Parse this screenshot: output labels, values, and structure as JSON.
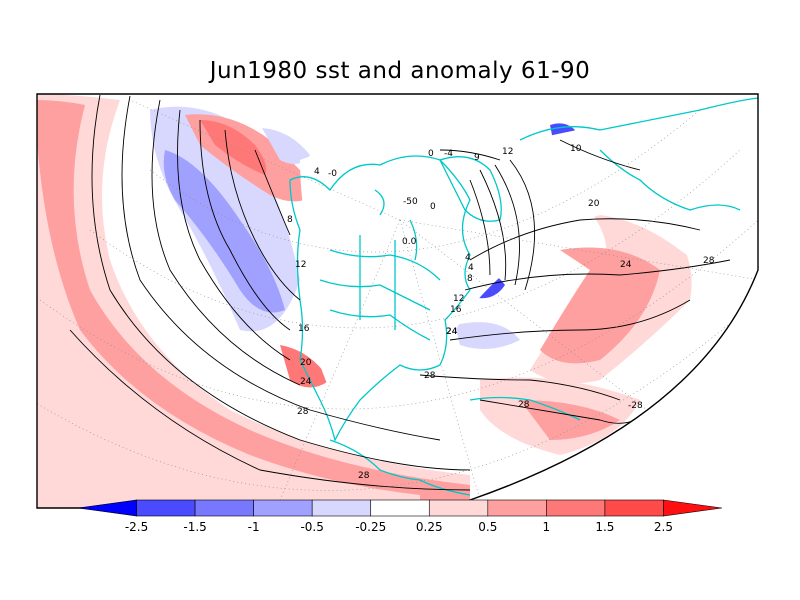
{
  "title": "Jun1980 sst and anomaly 61-90",
  "colorbar": {
    "labels": [
      "-2.5",
      "-1.5",
      "-1",
      "-0.5",
      "-0.25",
      "0.25",
      "0.5",
      "1",
      "1.5",
      "2.5"
    ],
    "colors": [
      "#0000ff",
      "#4a4aff",
      "#7878ff",
      "#a0a0ff",
      "#d8d8ff",
      "#ffffff",
      "#ffd8d8",
      "#ffa0a0",
      "#ff7878",
      "#ff4a4a",
      "#ff1010"
    ]
  },
  "contour_labels": {
    "pacific": [
      "8",
      "12",
      "16",
      "20",
      "24",
      "28",
      "28"
    ],
    "atlantic": [
      "24",
      "28",
      "28",
      "-28",
      "20",
      "24",
      "28",
      "12",
      "16",
      "8",
      "4",
      "24"
    ],
    "arctic": [
      "0",
      "-4",
      "9",
      "12",
      "10",
      "-50",
      "0",
      "0.0",
      "4",
      "4",
      "-0"
    ]
  },
  "colors": {
    "coast": "#00c8c8",
    "warm1": "#ffd8d8",
    "warm2": "#ffa0a0",
    "cool1": "#d8d8ff",
    "cool2": "#a0a0ff",
    "cool3": "#4a4aff"
  }
}
